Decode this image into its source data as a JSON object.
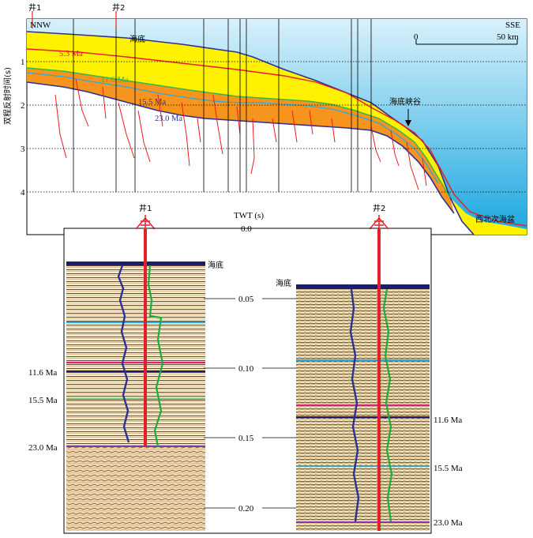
{
  "top_section": {
    "well_labels": [
      "井1",
      "井2"
    ],
    "direction_left": "NNW",
    "direction_right": "SSE",
    "scale_start": "0",
    "scale_end": "50 km",
    "y_axis_label": "双程反射时间(s)",
    "y_ticks": [
      "1",
      "2",
      "3",
      "4"
    ],
    "seafloor_label": "海底",
    "horizons": [
      "5.3 Ma",
      "11.6 Ma",
      "15.5 Ma",
      "23.0 Ma"
    ],
    "canyon_label": "海底峡谷",
    "basin_label": "西北次海盆",
    "colors": {
      "water": "#8fd3ee",
      "upper_sediment": "#fff200",
      "lower_sediment": "#f7941d",
      "seafloor_line": "#2e3192",
      "horizon_5_3": "#ed1c24",
      "horizon_11_6": "#39b54a",
      "horizon_15_5": "#29abe2",
      "fault": "#ed1c24"
    }
  },
  "bottom_section": {
    "well_labels": [
      "井1",
      "井2"
    ],
    "twt_label": "TWT (s)",
    "twt_ticks": [
      "0.0",
      "0.05",
      "0.10",
      "0.15",
      "0.20"
    ],
    "left_panel": {
      "seafloor_label": "海底",
      "horizons": [
        "11.6 Ma",
        "15.5 Ma",
        "23.0 Ma"
      ]
    },
    "right_panel": {
      "seafloor_label": "海底",
      "horizons": [
        "11.6 Ma",
        "15.5 Ma",
        "23.0 Ma"
      ]
    },
    "colors": {
      "well": "#e0202a",
      "log_blue": "#2e3192",
      "log_green": "#1faa3a",
      "horizon_cyan": "#29abe2",
      "horizon_magenta": "#d1237f",
      "horizon_navy": "#1b1f6b"
    }
  }
}
